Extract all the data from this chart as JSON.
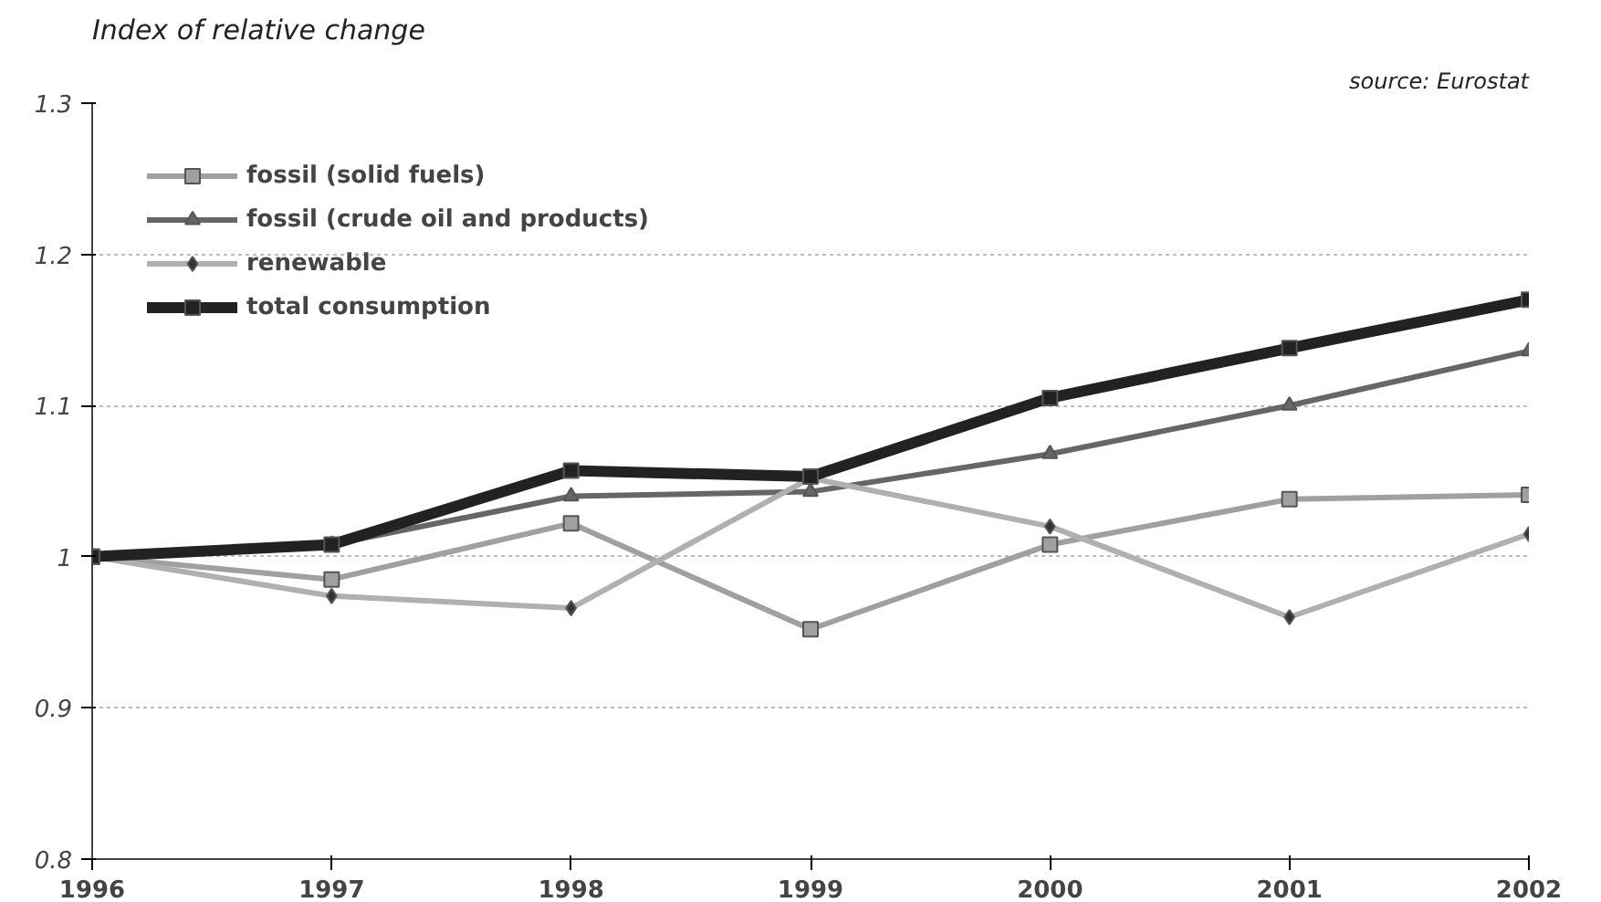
{
  "chart_data": {
    "type": "line",
    "subtitle": "Index of relative change",
    "annotations": [
      "source: Eurostat"
    ],
    "x": [
      1996,
      1997,
      1998,
      1999,
      2000,
      2001,
      2002
    ],
    "series": [
      {
        "name": "fossil (solid fuels)",
        "color": "#a0a0a0",
        "marker": "square",
        "values": [
          1.0,
          0.985,
          1.022,
          0.952,
          1.008,
          1.038,
          1.041
        ]
      },
      {
        "name": "fossil (crude oil and products)",
        "color": "#666666",
        "marker": "triangle",
        "values": [
          1.0,
          1.008,
          1.04,
          1.043,
          1.068,
          1.1,
          1.136
        ]
      },
      {
        "name": "renewable",
        "color": "#b0b0b0",
        "marker": "diamond",
        "values": [
          1.0,
          0.974,
          0.966,
          1.052,
          1.02,
          0.96,
          1.015
        ]
      },
      {
        "name": "total consumption",
        "color": "#222222",
        "marker": "square",
        "values": [
          1.0,
          1.008,
          1.057,
          1.053,
          1.105,
          1.138,
          1.17
        ]
      }
    ],
    "xlim": [
      1996,
      2002
    ],
    "xticks": [
      1996,
      1997,
      1998,
      1999,
      2000,
      2001,
      2002
    ],
    "ylim": [
      0.8,
      1.3
    ],
    "yticks": [
      {
        "value": 0.8,
        "label": "0.8"
      },
      {
        "value": 0.9,
        "label": "0.9"
      },
      {
        "value": 1,
        "label": "1"
      },
      {
        "value": 1.1,
        "label": "1.1"
      },
      {
        "value": 1.2,
        "label": "1.2"
      },
      {
        "value": 1.3,
        "label": "1.3"
      }
    ],
    "grid": "y",
    "legend": "top left",
    "line_style": "solid"
  }
}
